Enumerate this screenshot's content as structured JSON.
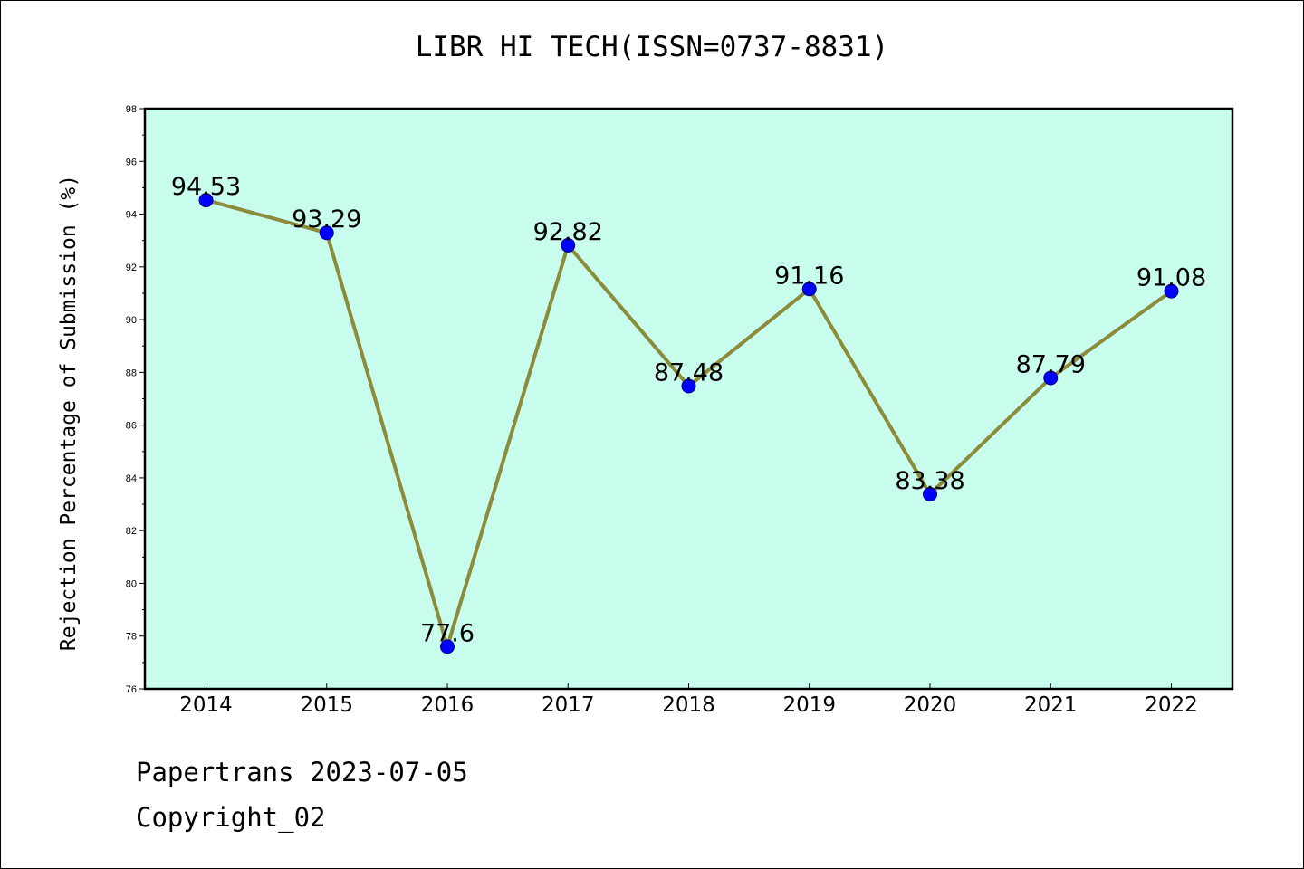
{
  "chart_data": {
    "type": "line",
    "title": "LIBR HI TECH(ISSN=0737-8831)",
    "ylabel": "Rejection Percentage of Submission (%)",
    "xlabel": "",
    "categories": [
      "2014",
      "2015",
      "2016",
      "2017",
      "2018",
      "2019",
      "2020",
      "2021",
      "2022"
    ],
    "values": [
      94.53,
      93.29,
      77.6,
      92.82,
      87.48,
      91.16,
      83.38,
      87.79,
      91.08
    ],
    "data_labels": [
      "94.53",
      "93.29",
      "77.6",
      "92.82",
      "87.48",
      "91.16",
      "83.38",
      "87.79",
      "91.08"
    ],
    "ylim": [
      76,
      98
    ],
    "yticks": [
      76,
      78,
      80,
      82,
      84,
      86,
      88,
      90,
      92,
      94,
      96,
      98
    ],
    "grid": false,
    "legend": "none",
    "colors": {
      "plot_background": "#c8fdee",
      "line": "#8b8b3a",
      "marker": "#0000ff"
    }
  },
  "footer": {
    "line1": "Papertrans 2023-07-05",
    "line2": "Copyright_02"
  }
}
